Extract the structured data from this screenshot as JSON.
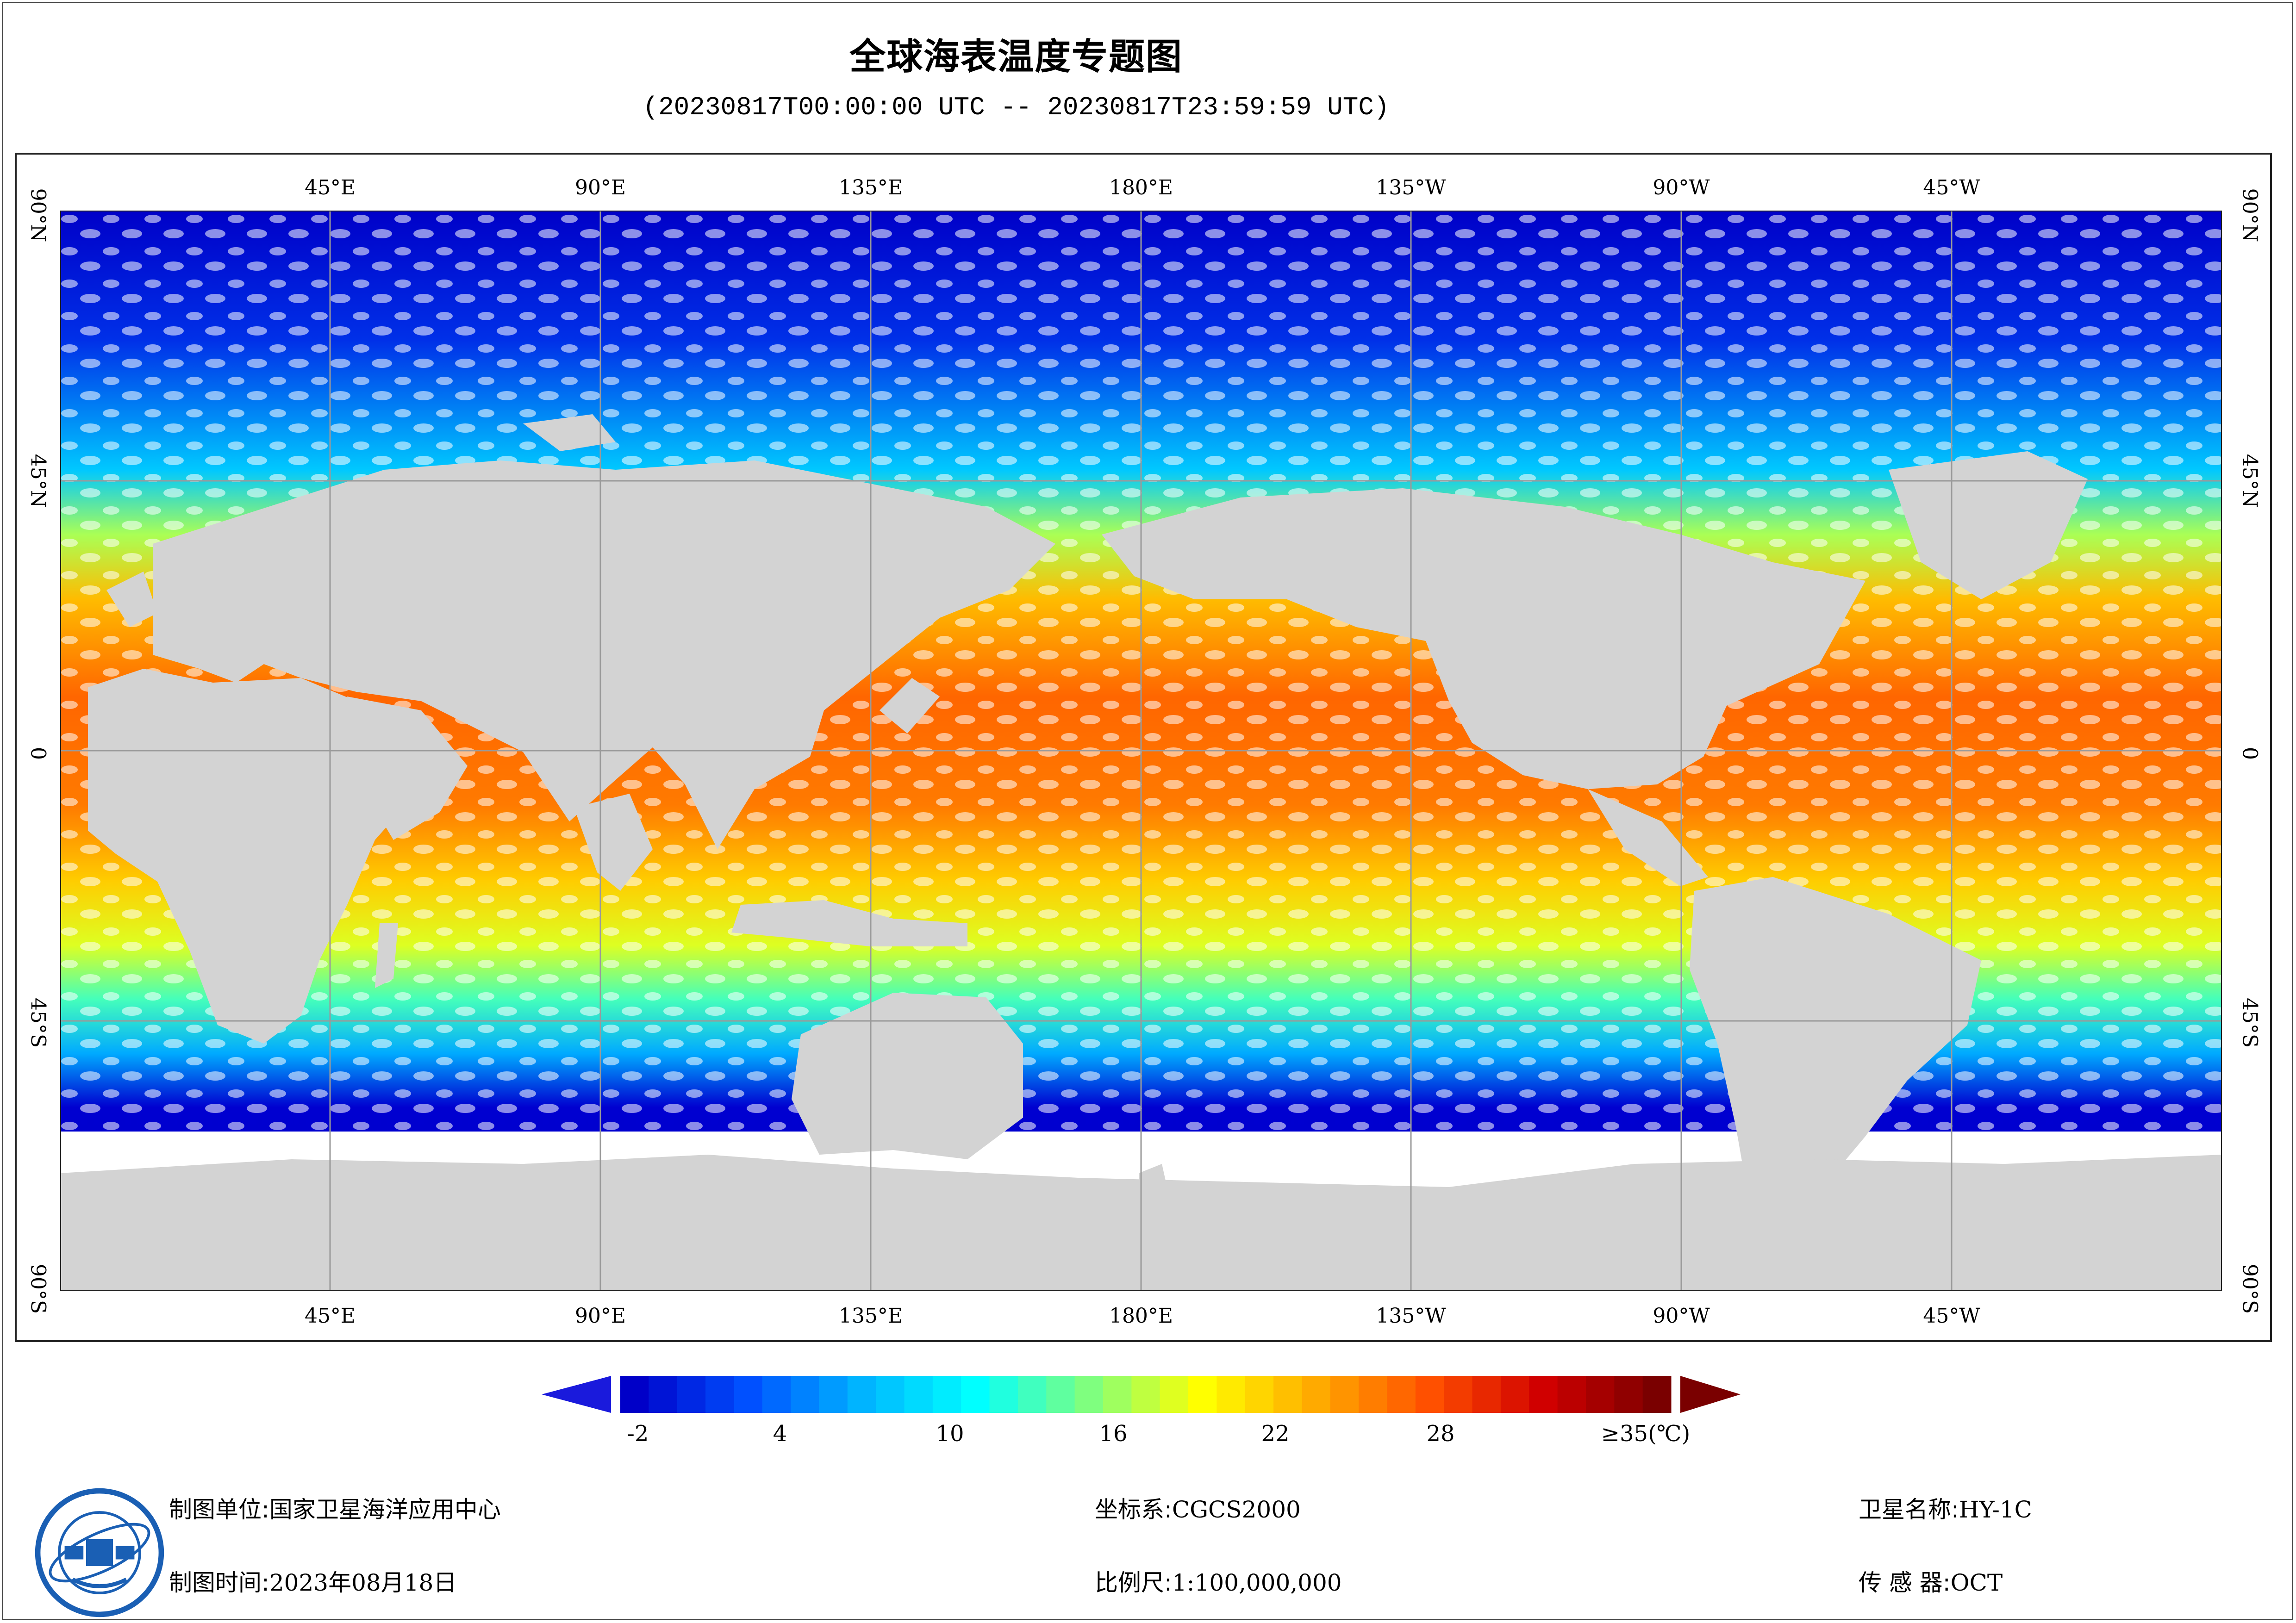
{
  "title": "全球海表温度专题图",
  "subtitle": "(20230817T00:00:00 UTC -- 20230817T23:59:59 UTC)",
  "map": {
    "lon_labels": [
      "45°E",
      "90°E",
      "135°E",
      "180°E",
      "135°W",
      "90°W",
      "45°W"
    ],
    "lat_labels": [
      "90°N",
      "45°N",
      "0",
      "45°S",
      "90°S"
    ],
    "land_color": "#d3d3d3",
    "nodata_color": "#ffffff",
    "projection": "equirectangular",
    "lon_range": [
      0,
      360
    ],
    "lat_range": [
      -90,
      90
    ]
  },
  "colorbar": {
    "ticks": [
      "-2",
      "4",
      "10",
      "16",
      "22",
      "28"
    ],
    "max_label": "≥35(℃)",
    "min": -2,
    "max": 35,
    "low_color": "#1a1adc",
    "high_color": "#7a0000",
    "stops": [
      "#0000c8",
      "#0050ff",
      "#00b4ff",
      "#00ffff",
      "#7fff7f",
      "#ffff00",
      "#ffaa00",
      "#ff5000",
      "#d00000",
      "#7a0000"
    ]
  },
  "footer": {
    "unit_label": "制图单位:",
    "unit_value": "国家卫星海洋应用中心",
    "time_label": "制图时间:",
    "time_value": "2023年08月18日",
    "crs_label": "坐标系:",
    "crs_value": "CGCS2000",
    "scale_label": "比例尺:",
    "scale_value": "1:100,000,000",
    "sat_label": "卫星名称:",
    "sat_value": "HY-1C",
    "sensor_label": "传 感 器:",
    "sensor_value": "OCT"
  },
  "logo": {
    "icon": "nsoas-logo",
    "colors": [
      "#1a5fb4",
      "#ffffff"
    ]
  }
}
